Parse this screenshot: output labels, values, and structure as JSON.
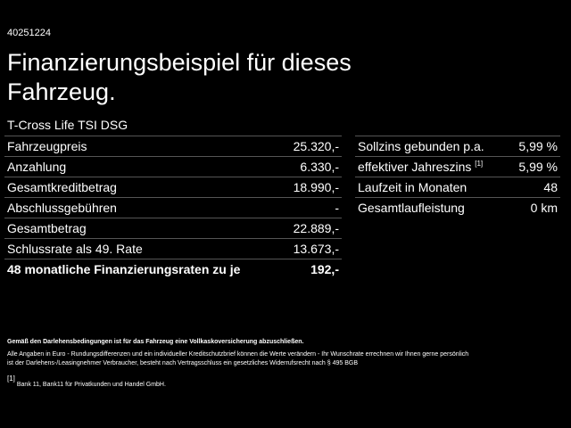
{
  "id": "40251224",
  "title": "Finanzierungsbeispiel für dieses Fahrzeug.",
  "model": "T-Cross Life TSI DSG",
  "left_table": {
    "rows": [
      {
        "label": "Fahrzeugpreis",
        "value": "25.320,-"
      },
      {
        "label": "Anzahlung",
        "value": "6.330,-"
      },
      {
        "label": "Gesamtkreditbetrag",
        "value": "18.990,-"
      },
      {
        "label": "Abschlussgebühren",
        "value": "-"
      },
      {
        "label": "Gesamtbetrag",
        "value": "22.889,-"
      },
      {
        "label": "Schlussrate als 49. Rate",
        "value": "13.673,-"
      },
      {
        "label": "48 monatliche Finanzierungsraten zu je",
        "value": "192,-"
      }
    ]
  },
  "right_table": {
    "rows": [
      {
        "label": "Sollzins gebunden p.a.",
        "value": "5,99 %"
      },
      {
        "label": "effektiver Jahreszins",
        "ref": "[1]",
        "value": "5,99 %"
      },
      {
        "label": "Laufzeit in Monaten",
        "value": "48"
      },
      {
        "label": "Gesamtlaufleistung",
        "value": "0 km"
      }
    ]
  },
  "notes": {
    "insurance": "Gemäß den Darlehensbedingungen ist für das Fahrzeug eine Vollkaskoversicherung abzuschließen.",
    "lines": [
      "Alle Angaben in Euro - Rundungsdifferenzen und ein individueller Kreditschutzbrief können die Werte verändern - Ihr Wunschrate errechnen wir Ihnen gerne persönlich",
      "ist der Darlehens-/Leasingnehmer Verbraucher, besteht nach Vertragsschluss ein gesetzliches Widerrufsrecht nach § 495 BGB"
    ],
    "footnote": {
      "ref": "[1]",
      "text": "Bank 11, Bank11 für Privatkunden und Handel GmbH."
    }
  }
}
